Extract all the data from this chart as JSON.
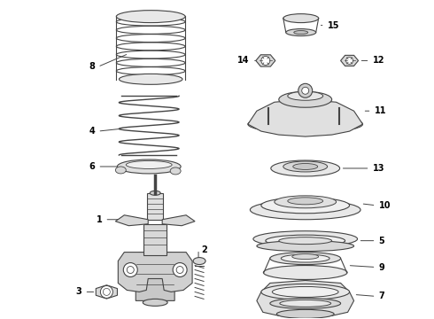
{
  "background_color": "#ffffff",
  "line_color": "#444444",
  "text_color": "#000000",
  "label_fontsize": 7,
  "fig_w": 4.9,
  "fig_h": 3.6,
  "dpi": 100
}
